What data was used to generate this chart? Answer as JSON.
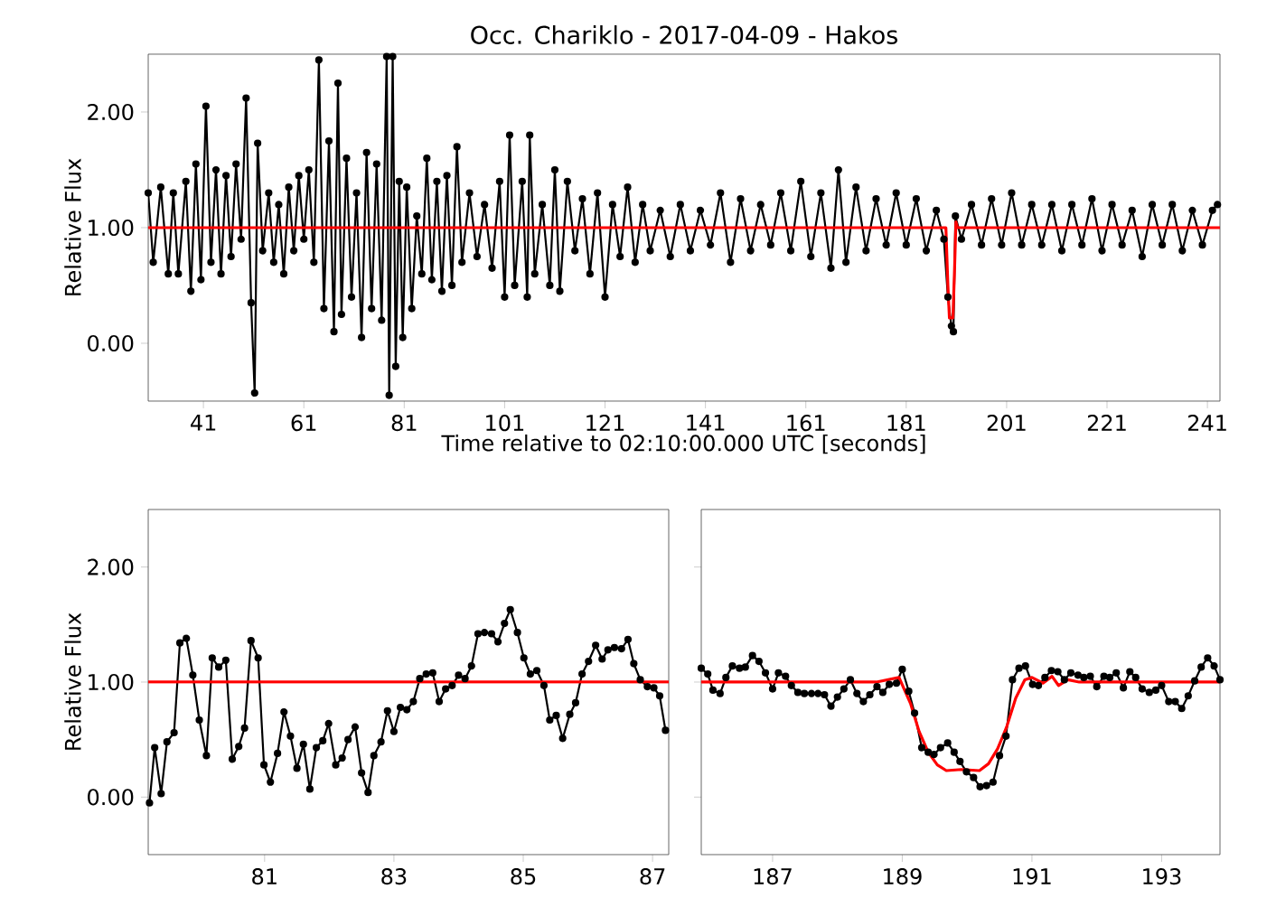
{
  "chart_data": [
    {
      "type": "line",
      "title": "Occ. Chariklo - 2017-04-09 - Hakos",
      "xlabel": "Time relative to 02:10:00.000 UTC [seconds]",
      "ylabel": "Relative Flux",
      "xlim": [
        30,
        243.5
      ],
      "ylim": [
        -0.5,
        2.5
      ],
      "xticks": [
        41,
        61,
        81,
        101,
        121,
        141,
        161,
        181,
        201,
        221,
        241
      ],
      "yticks": [
        {
          "value": 0,
          "label": "0.00"
        },
        {
          "value": 1,
          "label": "1.00"
        },
        {
          "value": 2,
          "label": "2.00"
        }
      ],
      "series": [
        {
          "color": "#000000",
          "marker": "circle",
          "x": [
            30,
            31,
            32.5,
            34,
            35,
            36,
            37.5,
            38.5,
            39.5,
            40.5,
            41.5,
            42.5,
            43.5,
            44.5,
            45.5,
            46.5,
            47.5,
            48.5,
            49.5,
            50.5,
            51.2,
            51.8,
            52.8,
            54,
            55,
            56,
            57,
            58,
            59,
            60,
            61,
            62,
            63,
            64,
            65,
            66,
            67,
            67.8,
            68.5,
            69.5,
            70.5,
            71.5,
            72.5,
            73.5,
            74.5,
            75.5,
            76.5,
            77.5,
            78,
            78.7,
            79.3,
            80,
            80.7,
            81.5,
            82.5,
            83.5,
            84.5,
            85.5,
            86.5,
            87.5,
            88.5,
            89.5,
            90.5,
            91.5,
            92.5,
            94,
            95.5,
            97,
            98.5,
            100,
            101,
            102,
            103,
            104.5,
            105.5,
            106,
            107,
            108.5,
            110,
            111,
            112,
            113.5,
            115,
            116.5,
            118,
            119.5,
            121,
            122.5,
            124,
            125.5,
            127,
            128.5,
            130,
            132,
            134,
            136,
            138,
            140,
            142,
            144,
            146,
            148,
            150,
            152,
            154,
            156,
            158,
            160,
            162,
            164,
            166,
            167.5,
            169,
            171,
            173,
            175,
            177,
            179,
            181,
            183,
            185,
            187,
            188.5,
            189.3,
            190,
            190.4,
            190.8,
            192,
            194,
            196,
            198,
            200,
            202,
            204,
            206,
            208,
            210,
            212,
            214,
            216,
            218,
            220,
            222,
            224,
            226,
            228,
            230,
            232,
            234,
            236,
            238,
            240,
            242,
            243
          ],
          "values": [
            1.3,
            0.7,
            1.35,
            0.6,
            1.3,
            0.6,
            1.4,
            0.45,
            1.55,
            0.55,
            2.05,
            0.7,
            1.5,
            0.6,
            1.45,
            0.75,
            1.55,
            0.9,
            2.12,
            0.35,
            -0.43,
            1.73,
            0.8,
            1.3,
            0.7,
            1.2,
            0.6,
            1.35,
            0.8,
            1.45,
            0.9,
            1.5,
            0.7,
            2.45,
            0.3,
            1.75,
            0.1,
            2.25,
            0.25,
            1.6,
            0.4,
            1.3,
            0.05,
            1.65,
            0.3,
            1.55,
            0.2,
            2.48,
            -0.45,
            2.48,
            -0.2,
            1.4,
            0.05,
            1.35,
            0.3,
            1.1,
            0.6,
            1.6,
            0.55,
            1.4,
            0.45,
            1.45,
            0.5,
            1.7,
            0.7,
            1.3,
            0.75,
            1.2,
            0.65,
            1.4,
            0.4,
            1.8,
            0.5,
            1.4,
            0.4,
            1.8,
            0.6,
            1.2,
            0.5,
            1.5,
            0.45,
            1.4,
            0.8,
            1.25,
            0.6,
            1.3,
            0.4,
            1.2,
            0.75,
            1.35,
            0.7,
            1.2,
            0.8,
            1.15,
            0.75,
            1.2,
            0.8,
            1.15,
            0.85,
            1.3,
            0.7,
            1.25,
            0.8,
            1.2,
            0.85,
            1.3,
            0.8,
            1.4,
            0.75,
            1.3,
            0.65,
            1.5,
            0.7,
            1.35,
            0.8,
            1.25,
            0.85,
            1.3,
            0.85,
            1.25,
            0.8,
            1.15,
            0.9,
            0.4,
            0.15,
            0.1,
            1.1,
            0.9,
            1.2,
            0.85,
            1.25,
            0.85,
            1.3,
            0.85,
            1.2,
            0.85,
            1.2,
            0.8,
            1.2,
            0.85,
            1.25,
            0.8,
            1.2,
            0.85,
            1.15,
            0.75,
            1.2,
            0.85,
            1.2,
            0.8,
            1.15,
            0.85,
            1.15,
            1.2
          ]
        },
        {
          "color": "#ff0000",
          "marker": "none",
          "x": [
            30,
            188.9,
            189.3,
            189.6,
            190.3,
            190.6,
            190.9,
            191.2,
            243.5
          ],
          "values": [
            1,
            1,
            0.5,
            0.22,
            0.22,
            0.6,
            1.05,
            1,
            1
          ]
        }
      ]
    },
    {
      "type": "line",
      "ylabel": "Relative Flux",
      "xlim": [
        79.2,
        87.25
      ],
      "ylim": [
        -0.5,
        2.5
      ],
      "xticks": [
        81,
        83,
        85,
        87
      ],
      "yticks": [
        {
          "value": 0,
          "label": "0.00"
        },
        {
          "value": 1,
          "label": "1.00"
        },
        {
          "value": 2,
          "label": "2.00"
        }
      ],
      "series": [
        {
          "color": "#000000",
          "marker": "circle",
          "x": [
            79.22,
            79.3,
            79.4,
            79.49,
            79.6,
            79.69,
            79.79,
            79.89,
            79.99,
            80.1,
            80.19,
            80.29,
            80.4,
            80.5,
            80.6,
            80.69,
            80.79,
            80.9,
            80.99,
            81.09,
            81.2,
            81.3,
            81.4,
            81.5,
            81.6,
            81.7,
            81.8,
            81.9,
            81.99,
            82.1,
            82.2,
            82.29,
            82.4,
            82.5,
            82.6,
            82.69,
            82.8,
            82.9,
            83,
            83.1,
            83.2,
            83.3,
            83.4,
            83.5,
            83.6,
            83.7,
            83.8,
            83.9,
            84,
            84.1,
            84.2,
            84.3,
            84.4,
            84.51,
            84.61,
            84.71,
            84.8,
            84.91,
            85.01,
            85.11,
            85.21,
            85.32,
            85.41,
            85.51,
            85.61,
            85.72,
            85.81,
            85.91,
            86.01,
            86.12,
            86.22,
            86.31,
            86.41,
            86.52,
            86.62,
            86.71,
            86.81,
            86.92,
            87.02,
            87.11,
            87.2
          ],
          "values": [
            -0.05,
            0.43,
            0.03,
            0.48,
            0.56,
            1.34,
            1.38,
            1.06,
            0.67,
            0.36,
            1.21,
            1.13,
            1.19,
            0.33,
            0.44,
            0.6,
            1.36,
            1.21,
            0.28,
            0.13,
            0.38,
            0.74,
            0.53,
            0.25,
            0.46,
            0.07,
            0.43,
            0.49,
            0.64,
            0.28,
            0.34,
            0.5,
            0.61,
            0.21,
            0.04,
            0.36,
            0.48,
            0.75,
            0.57,
            0.78,
            0.76,
            0.83,
            1.03,
            1.07,
            1.08,
            0.83,
            0.94,
            0.97,
            1.06,
            1.03,
            1.14,
            1.42,
            1.43,
            1.42,
            1.35,
            1.51,
            1.63,
            1.43,
            1.21,
            1.07,
            1.1,
            0.97,
            0.67,
            0.71,
            0.51,
            0.72,
            0.82,
            1.07,
            1.18,
            1.32,
            1.2,
            1.28,
            1.3,
            1.29,
            1.37,
            1.16,
            1.02,
            0.96,
            0.95,
            0.88,
            0.58
          ]
        },
        {
          "color": "#ff0000",
          "marker": "none",
          "x": [
            79.2,
            87.25
          ],
          "values": [
            1,
            1
          ]
        }
      ]
    },
    {
      "type": "line",
      "tick_labels": "x",
      "xlim": [
        185.9,
        193.9
      ],
      "ylim": [
        -0.5,
        2.5
      ],
      "xticks": [
        187,
        189,
        191,
        193
      ],
      "yticks": [
        {
          "value": 0,
          "label": null
        },
        {
          "value": 1,
          "label": null
        },
        {
          "value": 2,
          "label": null
        }
      ],
      "series": [
        {
          "color": "#000000",
          "marker": "circle",
          "x": [
            185.9,
            186,
            186.08,
            186.19,
            186.28,
            186.38,
            186.49,
            186.58,
            186.69,
            186.79,
            186.89,
            187,
            187.09,
            187.2,
            187.29,
            187.39,
            187.49,
            187.6,
            187.7,
            187.8,
            187.9,
            188,
            188.1,
            188.2,
            188.3,
            188.4,
            188.5,
            188.61,
            188.7,
            188.8,
            188.91,
            189,
            189.1,
            189.19,
            189.3,
            189.4,
            189.49,
            189.59,
            189.7,
            189.8,
            189.89,
            189.99,
            190.1,
            190.2,
            190.3,
            190.4,
            190.5,
            190.6,
            190.7,
            190.8,
            190.9,
            191.01,
            191.1,
            191.2,
            191.3,
            191.4,
            191.5,
            191.6,
            191.71,
            191.8,
            191.9,
            192,
            192.11,
            192.2,
            192.3,
            192.41,
            192.51,
            192.6,
            192.7,
            192.81,
            192.91,
            193,
            193.11,
            193.21,
            193.31,
            193.41,
            193.51,
            193.61,
            193.71,
            193.81,
            193.9
          ],
          "values": [
            1.12,
            1.07,
            0.93,
            0.9,
            1.04,
            1.14,
            1.12,
            1.13,
            1.23,
            1.18,
            1.08,
            0.94,
            1.08,
            1.05,
            0.97,
            0.91,
            0.9,
            0.9,
            0.9,
            0.89,
            0.79,
            0.87,
            0.94,
            1.02,
            0.9,
            0.83,
            0.89,
            0.96,
            0.91,
            0.98,
            0.99,
            1.11,
            0.92,
            0.73,
            0.43,
            0.39,
            0.37,
            0.43,
            0.47,
            0.39,
            0.31,
            0.22,
            0.17,
            0.09,
            0.1,
            0.13,
            0.36,
            0.53,
            1.02,
            1.12,
            1.14,
            0.98,
            0.97,
            1.04,
            1.1,
            1.09,
            1.02,
            1.08,
            1.06,
            1.04,
            1.05,
            0.96,
            1.05,
            1.04,
            1.08,
            0.95,
            1.09,
            1.04,
            0.94,
            0.91,
            0.93,
            0.97,
            0.83,
            0.83,
            0.77,
            0.88,
            1.01,
            1.13,
            1.21,
            1.14,
            1.02
          ]
        },
        {
          "color": "#ff0000",
          "marker": "none",
          "x": [
            185.9,
            188.6,
            188.95,
            189.13,
            189.26,
            189.4,
            189.54,
            189.68,
            189.91,
            190.19,
            190.33,
            190.47,
            190.61,
            190.75,
            190.89,
            191,
            191.17,
            191.31,
            191.41,
            191.55,
            191.73,
            193.9
          ],
          "values": [
            1,
            1,
            1.04,
            0.81,
            0.57,
            0.39,
            0.28,
            0.23,
            0.24,
            0.23,
            0.29,
            0.42,
            0.61,
            0.86,
            1.02,
            1.04,
            0.99,
            1.05,
            0.97,
            1.02,
            1,
            1
          ]
        }
      ]
    }
  ]
}
